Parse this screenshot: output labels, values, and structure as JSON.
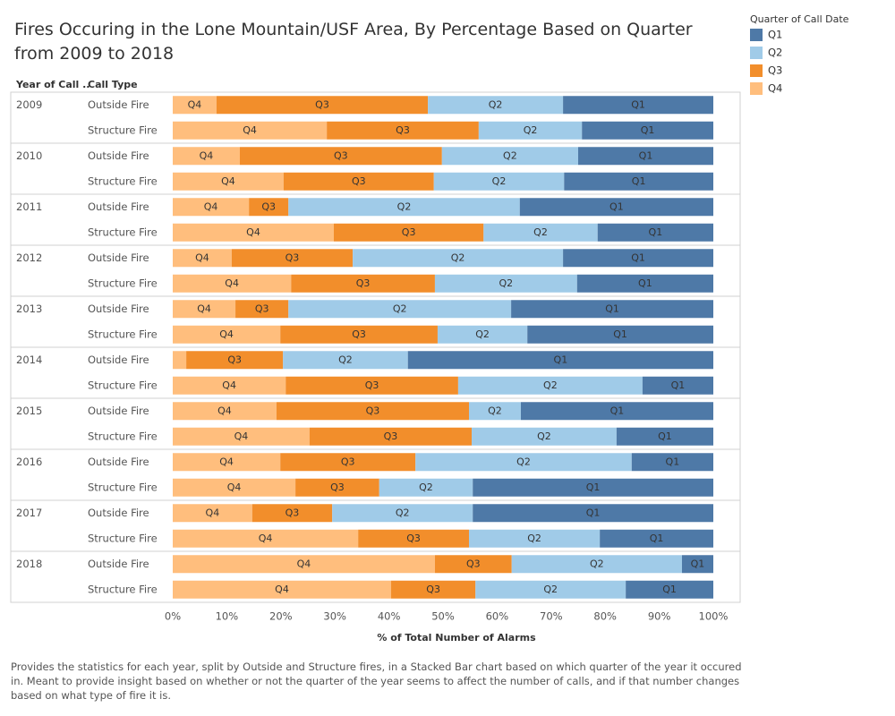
{
  "chart_data": {
    "type": "stacked-bar-horizontal",
    "title": "Fires Occuring in the Lone Mountain/USF Area, By Percentage Based on Quarter from 2009 to 2018",
    "header_year": "Year of Call ..",
    "header_type": "Call Type",
    "legend_title": "Quarter of Call Date",
    "x_label": "% of Total Number of Alarms",
    "caption": "Provides the statistics for each year, split by Outside and Structure fires, in a Stacked Bar chart based on which quarter of the year it occured in. Meant to provide insight based on whether or not the quarter of the year seems to affect the number of calls, and if that number changes based on what type of fire it is.",
    "years": [
      "2009",
      "2010",
      "2011",
      "2012",
      "2013",
      "2014",
      "2015",
      "2016",
      "2017",
      "2018"
    ],
    "categories": [
      "Outside Fire",
      "Structure Fire",
      "Outside Fire",
      "Structure Fire",
      "Outside Fire",
      "Structure Fire",
      "Outside Fire",
      "Structure Fire",
      "Outside Fire",
      "Structure Fire",
      "Outside Fire",
      "Structure Fire",
      "Outside Fire",
      "Structure Fire",
      "Outside Fire",
      "Structure Fire",
      "Outside Fire",
      "Structure Fire",
      "Outside Fire",
      "Structure Fire"
    ],
    "series": [
      {
        "name": "Q1",
        "color": "#4e79a7",
        "values": [
          27.8,
          24.3,
          25.0,
          27.6,
          35.8,
          21.4,
          27.8,
          25.2,
          37.4,
          34.4,
          56.5,
          13.1,
          35.6,
          17.9,
          15.1,
          44.5,
          44.5,
          21.0,
          5.8,
          16.2
        ]
      },
      {
        "name": "Q2",
        "color": "#a0cbe8",
        "values": [
          25.0,
          19.1,
          25.2,
          24.1,
          42.8,
          21.1,
          38.9,
          26.3,
          41.2,
          16.6,
          23.1,
          34.1,
          9.6,
          26.8,
          40.0,
          17.3,
          26.0,
          24.2,
          31.5,
          27.8
        ]
      },
      {
        "name": "Q3",
        "color": "#f28e2b",
        "values": [
          39.1,
          28.1,
          37.4,
          27.8,
          7.3,
          27.7,
          22.4,
          26.6,
          9.8,
          29.1,
          17.9,
          31.9,
          35.6,
          30.0,
          25.0,
          15.5,
          14.8,
          20.5,
          14.2,
          15.6
        ]
      },
      {
        "name": "Q4",
        "color": "#ffbe7d",
        "values": [
          8.1,
          28.5,
          12.4,
          20.5,
          14.1,
          29.8,
          10.9,
          21.9,
          11.6,
          19.9,
          2.5,
          20.9,
          19.2,
          25.3,
          19.9,
          22.7,
          14.7,
          34.3,
          48.5,
          40.4
        ]
      }
    ],
    "xlim": [
      0,
      100
    ],
    "xticks": [
      {
        "value": 0,
        "label": "0%"
      },
      {
        "value": 10,
        "label": "10%"
      },
      {
        "value": 20,
        "label": "20%"
      },
      {
        "value": 30,
        "label": "30%"
      },
      {
        "value": 40,
        "label": "40%"
      },
      {
        "value": 50,
        "label": "50%"
      },
      {
        "value": 60,
        "label": "60%"
      },
      {
        "value": 70,
        "label": "70%"
      },
      {
        "value": 80,
        "label": "80%"
      },
      {
        "value": 90,
        "label": "90%"
      },
      {
        "value": 100,
        "label": "100%"
      }
    ]
  }
}
